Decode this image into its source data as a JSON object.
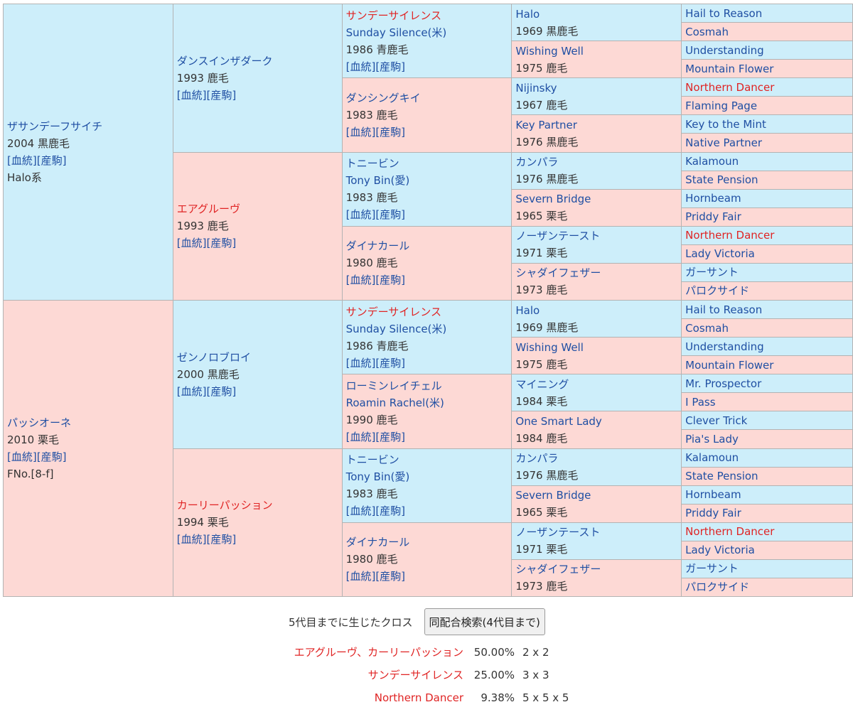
{
  "colors": {
    "sire_bg": "#cdeefa",
    "dam_bg": "#fdd9d5",
    "link": "#1f4fa3",
    "highlight": "#e02424"
  },
  "links": {
    "pedigree": "[血統]",
    "offspring": "[産駒]"
  },
  "gen1": [
    {
      "name": "ザサンデーフサイチ",
      "year": "2004 黒鹿毛",
      "extra": "Halo系"
    },
    {
      "name": "パッシオーネ",
      "year": "2010 栗毛",
      "extra": "FNo.[8-f]"
    }
  ],
  "gen2": [
    {
      "name": "ダンスインザダーク",
      "year": "1993 鹿毛"
    },
    {
      "name": "エアグルーヴ",
      "year": "1993 鹿毛"
    },
    {
      "name": "ゼンノロブロイ",
      "year": "2000 黒鹿毛"
    },
    {
      "name": "カーリーパッション",
      "year": "1994 栗毛"
    }
  ],
  "gen3": [
    {
      "name": "サンデーサイレンス",
      "en": "Sunday Silence(米)",
      "year": "1986 青鹿毛"
    },
    {
      "name": "ダンシングキイ",
      "year": "1983 鹿毛"
    },
    {
      "name": "トニービン",
      "en": "Tony Bin(愛)",
      "year": "1983 鹿毛"
    },
    {
      "name": "ダイナカール",
      "year": "1980 鹿毛"
    },
    {
      "name": "サンデーサイレンス",
      "en": "Sunday Silence(米)",
      "year": "1986 青鹿毛"
    },
    {
      "name": "ローミンレイチェル",
      "en": "Roamin Rachel(米)",
      "year": "1990 鹿毛"
    },
    {
      "name": "トニービン",
      "en": "Tony Bin(愛)",
      "year": "1983 鹿毛"
    },
    {
      "name": "ダイナカール",
      "year": "1980 鹿毛"
    }
  ],
  "gen4": [
    {
      "name": "Halo",
      "year": "1969 黒鹿毛"
    },
    {
      "name": "Wishing Well",
      "year": "1975 鹿毛"
    },
    {
      "name": "Nijinsky",
      "year": "1967 鹿毛"
    },
    {
      "name": "Key Partner",
      "year": "1976 黒鹿毛"
    },
    {
      "name": "カンパラ",
      "year": "1976 黒鹿毛"
    },
    {
      "name": "Severn Bridge",
      "year": "1965 栗毛"
    },
    {
      "name": "ノーザンテースト",
      "year": "1971 栗毛"
    },
    {
      "name": "シャダイフェザー",
      "year": "1973 鹿毛"
    },
    {
      "name": "Halo",
      "year": "1969 黒鹿毛"
    },
    {
      "name": "Wishing Well",
      "year": "1975 鹿毛"
    },
    {
      "name": "マイニング",
      "year": "1984 栗毛"
    },
    {
      "name": "One Smart Lady",
      "year": "1984 鹿毛"
    },
    {
      "name": "カンパラ",
      "year": "1976 黒鹿毛"
    },
    {
      "name": "Severn Bridge",
      "year": "1965 栗毛"
    },
    {
      "name": "ノーザンテースト",
      "year": "1971 栗毛"
    },
    {
      "name": "シャダイフェザー",
      "year": "1973 鹿毛"
    }
  ],
  "gen5": [
    "Hail to Reason",
    "Cosmah",
    "Understanding",
    "Mountain Flower",
    "Northern Dancer",
    "Flaming Page",
    "Key to the Mint",
    "Native Partner",
    "Kalamoun",
    "State Pension",
    "Hornbeam",
    "Priddy Fair",
    "Northern Dancer",
    "Lady Victoria",
    "ガーサント",
    "パロクサイド",
    "Hail to Reason",
    "Cosmah",
    "Understanding",
    "Mountain Flower",
    "Mr. Prospector",
    "I Pass",
    "Clever Trick",
    "Pia's Lady",
    "Kalamoun",
    "State Pension",
    "Hornbeam",
    "Priddy Fair",
    "Northern Dancer",
    "Lady Victoria",
    "ガーサント",
    "パロクサイド"
  ],
  "highlighted": [
    "サンデーサイレンス",
    "エアグルーヴ",
    "カーリーパッション",
    "Northern Dancer"
  ],
  "cross": {
    "title": "5代目までに生じたクロス",
    "button": "同配合検索(4代目まで)",
    "rows": [
      {
        "name": "エアグルーヴ、カーリーパッション",
        "percent": "50.00%",
        "gens": "2 x 2"
      },
      {
        "name": "サンデーサイレンス",
        "percent": "25.00%",
        "gens": "3 x 3"
      },
      {
        "name": "Northern Dancer",
        "percent": "9.38%",
        "gens": "5 x 5 x 5"
      }
    ]
  }
}
